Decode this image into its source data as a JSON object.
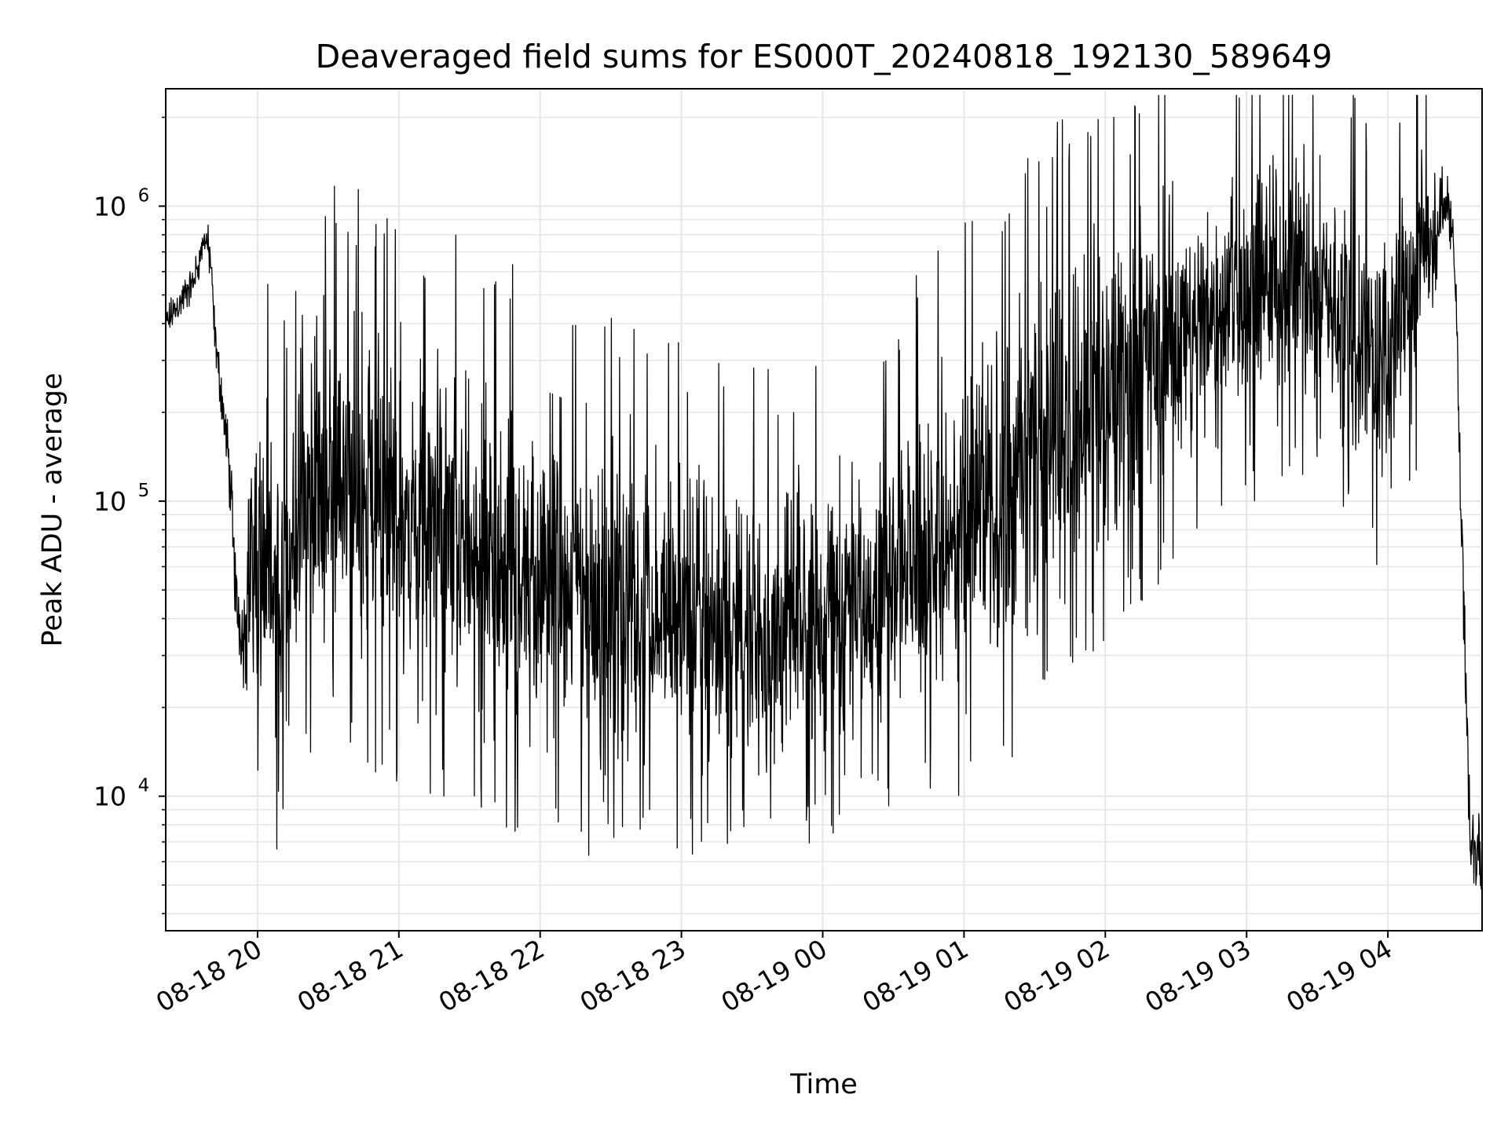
{
  "chart_data": {
    "type": "line",
    "title": "Deaveraged field sums for ES000T_20240818_192130_589649",
    "xlabel": "Time",
    "ylabel": "Peak ADU - average",
    "yscale": "log",
    "xlim": [
      "2024-08-18T19:21",
      "2024-08-19T04:40"
    ],
    "ylim": [
      3500,
      2500000
    ],
    "grid": true,
    "line_color": "#000000",
    "grid_color": "#e6e6e6",
    "x_ticks": [
      {
        "value": "2024-08-18T20:00",
        "label": "08-18 20"
      },
      {
        "value": "2024-08-18T21:00",
        "label": "08-18 21"
      },
      {
        "value": "2024-08-18T22:00",
        "label": "08-18 22"
      },
      {
        "value": "2024-08-18T23:00",
        "label": "08-18 23"
      },
      {
        "value": "2024-08-19T00:00",
        "label": "08-19 00"
      },
      {
        "value": "2024-08-19T01:00",
        "label": "08-19 01"
      },
      {
        "value": "2024-08-19T02:00",
        "label": "08-19 02"
      },
      {
        "value": "2024-08-19T03:00",
        "label": "08-19 03"
      },
      {
        "value": "2024-08-19T04:00",
        "label": "08-19 04"
      }
    ],
    "y_ticks": [
      {
        "value": 10000,
        "base": "10",
        "exp": "4"
      },
      {
        "value": 100000,
        "base": "10",
        "exp": "5"
      },
      {
        "value": 1000000,
        "base": "10",
        "exp": "6"
      }
    ],
    "series": [
      {
        "x": [
          "2024-08-18T19:21",
          "2024-08-18T19:27",
          "2024-08-18T19:33",
          "2024-08-18T19:38",
          "2024-08-18T19:40",
          "2024-08-18T19:42",
          "2024-08-18T19:45",
          "2024-08-18T19:48",
          "2024-08-18T19:51",
          "2024-08-18T19:54",
          "2024-08-18T19:57",
          "2024-08-18T20:00",
          "2024-08-18T20:03",
          "2024-08-18T20:06",
          "2024-08-18T20:10",
          "2024-08-18T20:13",
          "2024-08-18T20:20",
          "2024-08-18T20:30",
          "2024-08-18T20:40",
          "2024-08-18T21:00",
          "2024-08-18T21:20",
          "2024-08-18T21:40",
          "2024-08-18T22:00",
          "2024-08-18T22:20",
          "2024-08-18T22:40",
          "2024-08-18T23:00",
          "2024-08-18T23:20",
          "2024-08-18T23:40",
          "2024-08-19T00:00",
          "2024-08-19T00:20",
          "2024-08-19T00:40",
          "2024-08-19T01:00",
          "2024-08-19T01:20",
          "2024-08-19T01:40",
          "2024-08-19T02:00",
          "2024-08-19T02:20",
          "2024-08-19T02:40",
          "2024-08-19T03:00",
          "2024-08-19T03:20",
          "2024-08-19T03:40",
          "2024-08-19T03:55",
          "2024-08-19T04:05",
          "2024-08-19T04:15",
          "2024-08-19T04:20",
          "2024-08-19T04:24",
          "2024-08-19T04:27",
          "2024-08-19T04:29",
          "2024-08-19T04:31",
          "2024-08-19T04:35",
          "2024-08-19T04:40"
        ],
        "base": [
          400000,
          470000,
          560000,
          800000,
          650000,
          350000,
          220000,
          130000,
          45000,
          35000,
          60000,
          75000,
          60000,
          50000,
          45000,
          60000,
          110000,
          120000,
          110000,
          90000,
          75000,
          60000,
          55000,
          50000,
          45000,
          40000,
          38000,
          35000,
          40000,
          50000,
          65000,
          80000,
          110000,
          160000,
          230000,
          310000,
          400000,
          500000,
          600000,
          450000,
          300000,
          420000,
          600000,
          800000,
          1100000,
          900000,
          500000,
          90000,
          7000,
          6000
        ],
        "spread": [
          1.15,
          1.15,
          1.15,
          1.15,
          1.2,
          1.2,
          1.25,
          1.3,
          1.4,
          1.4,
          2.5,
          3.0,
          3.0,
          3.0,
          3.0,
          3.0,
          3.2,
          3.3,
          3.3,
          3.3,
          3.3,
          3.2,
          3.2,
          3.2,
          3.0,
          2.8,
          2.7,
          2.7,
          2.6,
          2.7,
          3.0,
          3.2,
          3.3,
          3.3,
          3.0,
          2.8,
          2.7,
          2.6,
          2.5,
          2.5,
          2.5,
          2.5,
          2.2,
          1.5,
          1.3,
          1.2,
          1.2,
          1.5,
          1.3,
          1.3
        ]
      }
    ]
  }
}
